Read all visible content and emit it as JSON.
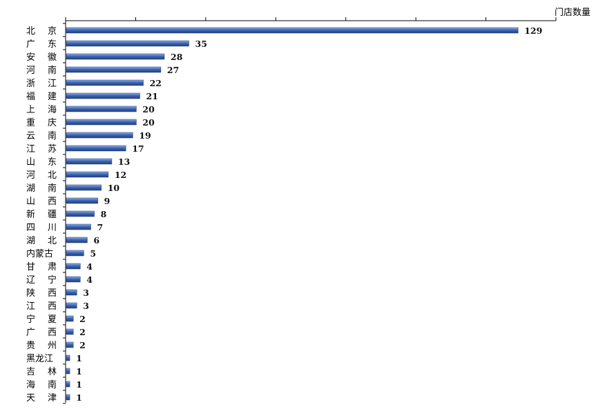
{
  "chart_data": {
    "type": "bar",
    "orientation": "horizontal",
    "ylabel": "门店数量",
    "categories": [
      "北京",
      "广东",
      "安徽",
      "河南",
      "浙江",
      "福建",
      "上海",
      "重庆",
      "云南",
      "江苏",
      "山东",
      "河北",
      "湖南",
      "山西",
      "新疆",
      "四川",
      "湖北",
      "内蒙古",
      "甘肃",
      "辽宁",
      "陕西",
      "江西",
      "宁夏",
      "广西",
      "贵州",
      "黑龙江",
      "吉林",
      "海南",
      "天津"
    ],
    "values": [
      129,
      35,
      28,
      27,
      22,
      21,
      20,
      20,
      19,
      17,
      13,
      12,
      10,
      9,
      8,
      7,
      6,
      5,
      4,
      4,
      3,
      3,
      2,
      2,
      2,
      1,
      1,
      1,
      1
    ],
    "xlim": [
      0,
      140
    ],
    "grid": false,
    "legend": "none",
    "bar_color": "#3f66b0"
  }
}
